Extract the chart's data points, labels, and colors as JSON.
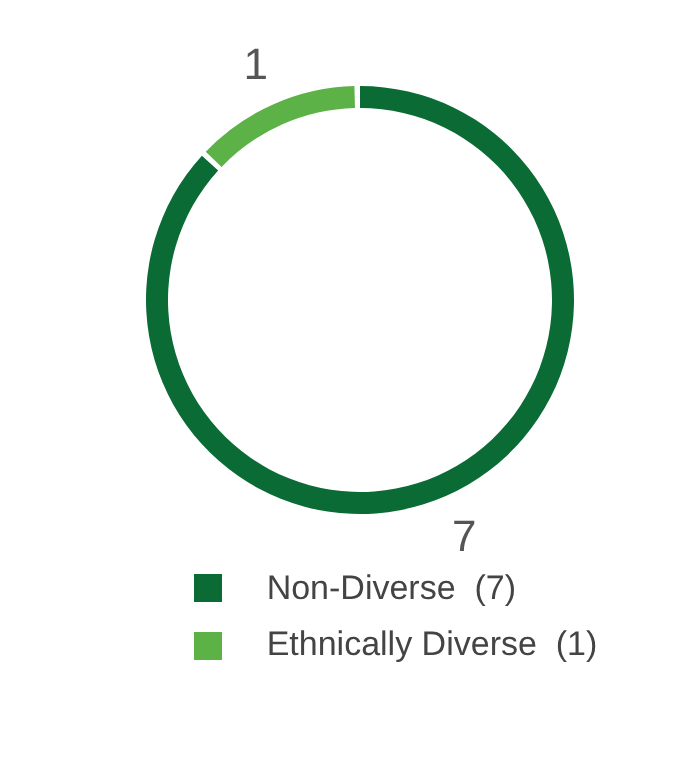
{
  "chart_data": {
    "type": "donut",
    "categories": [
      "Non-Diverse  (7)",
      "Ethnically Diverse  (1)"
    ],
    "values": [
      7,
      1
    ],
    "colors": [
      "#0b6b35",
      "#5cb247"
    ],
    "data_labels": true,
    "legend": "bottom"
  }
}
